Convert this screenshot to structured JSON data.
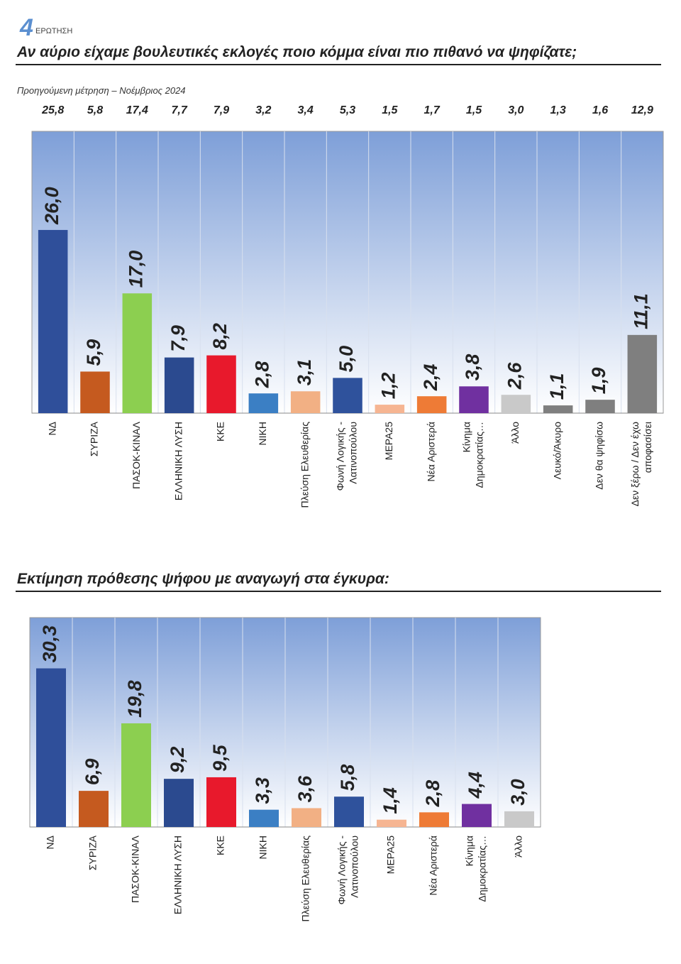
{
  "header": {
    "number": "4",
    "label": "ΕΡΩΤΗΣΗ"
  },
  "chart_data": [
    {
      "type": "bar",
      "title": "Αν αύριο είχαμε βουλευτικές εκλογές ποιο κόμμα είναι πιο πιθανό να ψηφίζατε;",
      "previous_label": "Προηγούμενη μέτρηση – Νοέμβριος 2024",
      "previous_values": [
        25.8,
        5.8,
        17.4,
        7.7,
        7.9,
        3.2,
        3.4,
        5.3,
        1.5,
        1.7,
        1.5,
        3.0,
        1.3,
        1.6,
        12.9
      ],
      "previous_value_labels": [
        "25,8",
        "5,8",
        "17,4",
        "7,7",
        "7,9",
        "3,2",
        "3,4",
        "5,3",
        "1,5",
        "1,7",
        "1,5",
        "3,0",
        "1,3",
        "1,6",
        "12,9"
      ],
      "categories": [
        [
          "ΝΔ"
        ],
        [
          "ΣΥΡΙΖΑ"
        ],
        [
          "ΠΑΣΟΚ-ΚΙΝΑΛ"
        ],
        [
          "ΕΛΛΗΝΙΚΗ ΛΥΣΗ"
        ],
        [
          "ΚΚΕ"
        ],
        [
          "ΝΙΚΗ"
        ],
        [
          "Πλεύση Ελευθερίας"
        ],
        [
          "Φωνή Λογικής -",
          "Λατινοπούλου"
        ],
        [
          "ΜΕΡΑ25"
        ],
        [
          "Νέα Αριστερά"
        ],
        [
          "Κίνημα",
          "Δημοκρατίας…"
        ],
        [
          "Άλλο"
        ],
        [
          "Λευκό/Άκυρο"
        ],
        [
          "Δεν θα ψηφίσω"
        ],
        [
          "Δεν ξέρω / Δεν έχω",
          "αποφασίσει"
        ]
      ],
      "values": [
        26.0,
        5.9,
        17.0,
        7.9,
        8.2,
        2.8,
        3.1,
        5.0,
        1.2,
        2.4,
        3.8,
        2.6,
        1.1,
        1.9,
        11.1
      ],
      "value_labels": [
        "26,0",
        "5,9",
        "17,0",
        "7,9",
        "8,2",
        "2,8",
        "3,1",
        "5,0",
        "1,2",
        "2,4",
        "3,8",
        "2,6",
        "1,1",
        "1,9",
        "11,1"
      ],
      "colors": [
        "#2f4f9a",
        "#c55a1f",
        "#8ccf50",
        "#2b4a8f",
        "#e8192c",
        "#3b7fc4",
        "#f2b084",
        "#2f529c",
        "#f6b592",
        "#ee7b36",
        "#7030a0",
        "#c9c9c9",
        "#7f7f7f",
        "#7f7f7f",
        "#7f7f7f"
      ],
      "ylim": [
        0,
        40
      ]
    },
    {
      "type": "bar",
      "title": "Εκτίμηση πρόθεσης ψήφου με αναγωγή στα έγκυρα:",
      "categories": [
        [
          "ΝΔ"
        ],
        [
          "ΣΥΡΙΖΑ"
        ],
        [
          "ΠΑΣΟΚ-ΚΙΝΑΛ"
        ],
        [
          "ΕΛΛΗΝΙΚΗ ΛΥΣΗ"
        ],
        [
          "ΚΚΕ"
        ],
        [
          "ΝΙΚΗ"
        ],
        [
          "Πλεύση Ελευθερίας"
        ],
        [
          "Φωνή Λογικής -",
          "Λατινοπούλου"
        ],
        [
          "ΜΕΡΑ25"
        ],
        [
          "Νέα Αριστερά"
        ],
        [
          "Κίνημα",
          "Δημοκρατίας…"
        ],
        [
          "Άλλο"
        ]
      ],
      "values": [
        30.3,
        6.9,
        19.8,
        9.2,
        9.5,
        3.3,
        3.6,
        5.8,
        1.4,
        2.8,
        4.4,
        3.0
      ],
      "value_labels": [
        "30,3",
        "6,9",
        "19,8",
        "9,2",
        "9,5",
        "3,3",
        "3,6",
        "5,8",
        "1,4",
        "2,8",
        "4,4",
        "3,0"
      ],
      "colors": [
        "#2f4f9a",
        "#c55a1f",
        "#8ccf50",
        "#2b4a8f",
        "#e8192c",
        "#3b7fc4",
        "#f2b084",
        "#2f529c",
        "#f6b592",
        "#ee7b36",
        "#7030a0",
        "#c9c9c9"
      ],
      "ylim": [
        0,
        40
      ]
    }
  ]
}
